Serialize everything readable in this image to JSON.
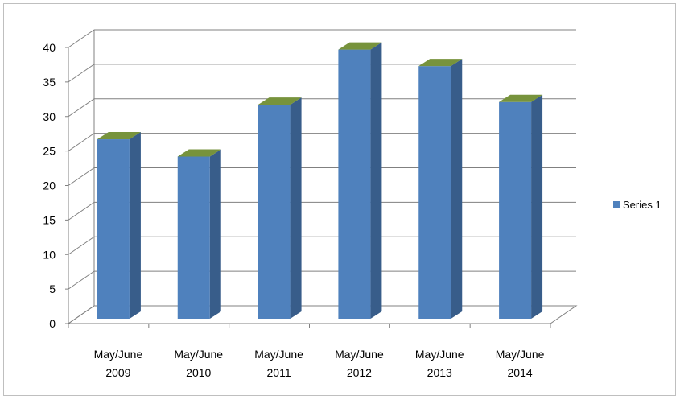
{
  "chart_data": {
    "type": "bar",
    "style": "3d-column",
    "categories": [
      [
        "May/June",
        "2009"
      ],
      [
        "May/June",
        "2010"
      ],
      [
        "May/June",
        "2011"
      ],
      [
        "May/June",
        "2012"
      ],
      [
        "May/June",
        "2013"
      ],
      [
        "May/June",
        "2014"
      ]
    ],
    "series": [
      {
        "name": "Series 1",
        "values": [
          26,
          23.5,
          31,
          39,
          36.6,
          31.4
        ]
      }
    ],
    "title": "",
    "xlabel": "",
    "ylabel": "",
    "ylim": [
      0,
      40
    ],
    "yticks": [
      "0",
      "5",
      "10",
      "15",
      "20",
      "25",
      "30",
      "35",
      "40"
    ],
    "grid": true,
    "legend_position": "right",
    "colors": {
      "bar_front": "#4f81bd",
      "bar_side": "#385d8a",
      "bar_top": "#77933c",
      "gridline": "#808080",
      "wall": "#ffffff"
    }
  }
}
